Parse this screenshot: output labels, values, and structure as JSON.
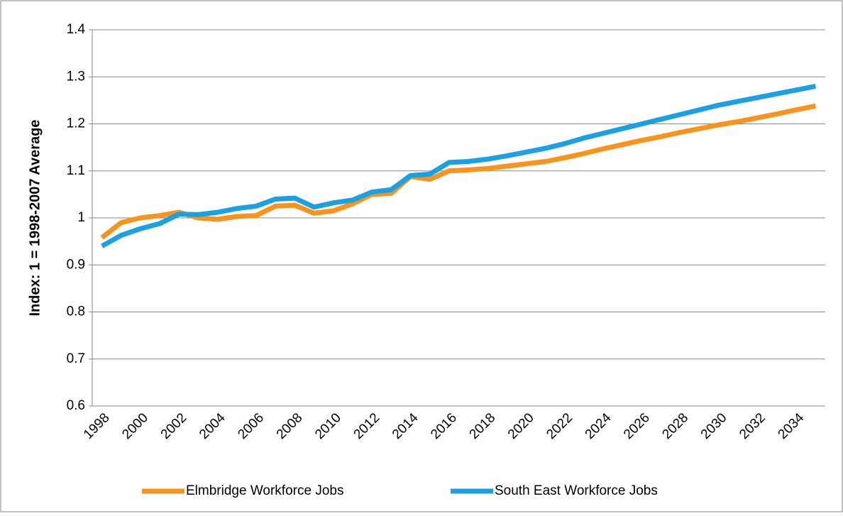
{
  "chart_data": {
    "type": "line",
    "ylabel": "Index: 1 = 1998-2007 Average",
    "categories": [
      "1998",
      null,
      "2000",
      null,
      "2002",
      null,
      "2004",
      null,
      "2006",
      null,
      "2008",
      null,
      "2010",
      null,
      "2012",
      null,
      "2014",
      null,
      "2016",
      null,
      "2018",
      null,
      "2020",
      null,
      "2022",
      null,
      "2024",
      null,
      "2026",
      null,
      "2028",
      null,
      "2030",
      null,
      "2032",
      null,
      "2034",
      null
    ],
    "series": [
      {
        "name": "Elmbridge Workforce Jobs",
        "color": "#f7941d",
        "values": [
          0.958,
          0.99,
          1.0,
          1.005,
          1.012,
          1.0,
          0.997,
          1.003,
          1.005,
          1.025,
          1.027,
          1.01,
          1.015,
          1.03,
          1.05,
          1.052,
          1.088,
          1.082,
          1.1,
          1.102,
          1.105,
          1.11,
          1.115,
          1.12,
          1.128,
          1.137,
          1.147,
          1.156,
          1.165,
          1.173,
          1.182,
          1.19,
          1.198,
          1.205,
          1.213,
          1.221,
          1.23,
          1.238
        ]
      },
      {
        "name": "South East Workforce Jobs",
        "color": "#1ba1e2",
        "values": [
          0.94,
          0.963,
          0.977,
          0.988,
          1.008,
          1.007,
          1.012,
          1.02,
          1.025,
          1.04,
          1.042,
          1.023,
          1.032,
          1.038,
          1.055,
          1.06,
          1.09,
          1.093,
          1.118,
          1.12,
          1.125,
          1.132,
          1.14,
          1.148,
          1.158,
          1.17,
          1.18,
          1.19,
          1.2,
          1.21,
          1.22,
          1.23,
          1.24,
          1.248,
          1.256,
          1.264,
          1.272,
          1.28
        ]
      }
    ],
    "ylim": [
      0.6,
      1.4
    ],
    "yticks": [
      0.6,
      0.7,
      0.8,
      0.9,
      1,
      1.1,
      1.2,
      1.3,
      1.4
    ],
    "grid": true,
    "legend": "bottom"
  }
}
